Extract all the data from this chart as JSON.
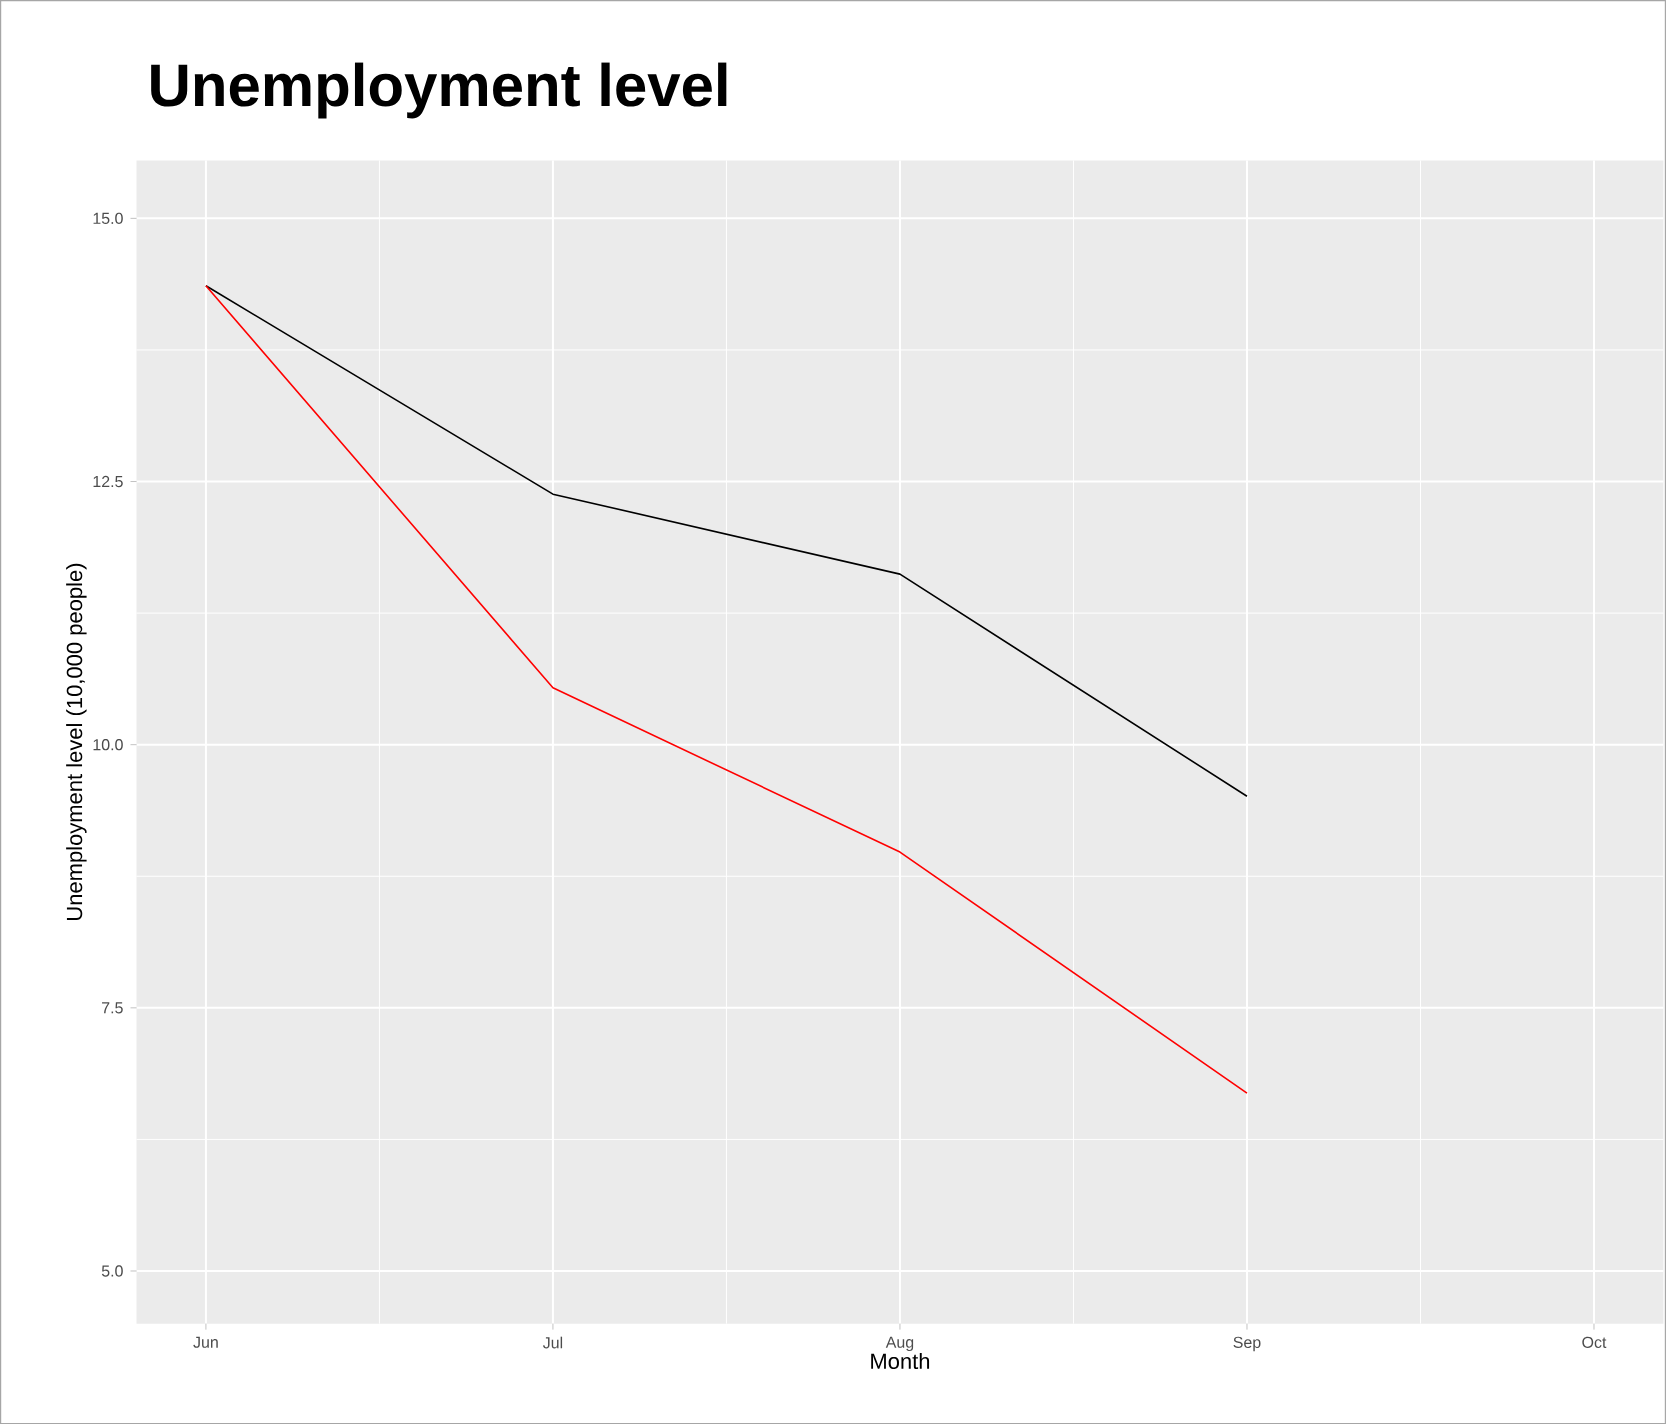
{
  "chart_data": {
    "type": "line",
    "title": "Unemployment level",
    "xlabel": "Month",
    "ylabel": "Unemployment level (10,000 people)",
    "categories": [
      "Jun",
      "Jul",
      "Aug",
      "Sep",
      "Oct"
    ],
    "series": [
      {
        "color": "#000000",
        "values": [
          14.36,
          12.38,
          11.62,
          9.51,
          null
        ]
      },
      {
        "color": "#ff0000",
        "values": [
          14.36,
          10.54,
          8.98,
          6.69,
          null
        ]
      }
    ],
    "ylim": [
      4.5,
      15.55
    ],
    "yticks": [
      {
        "value": 5,
        "label": "5.0"
      },
      {
        "value": 7.5,
        "label": "7.5"
      },
      {
        "value": 10,
        "label": "10.0"
      },
      {
        "value": 12.5,
        "label": "12.5"
      },
      {
        "value": 15,
        "label": "15.0"
      }
    ],
    "grid": true,
    "legend": false,
    "marker": "none",
    "line_style": "solid"
  }
}
